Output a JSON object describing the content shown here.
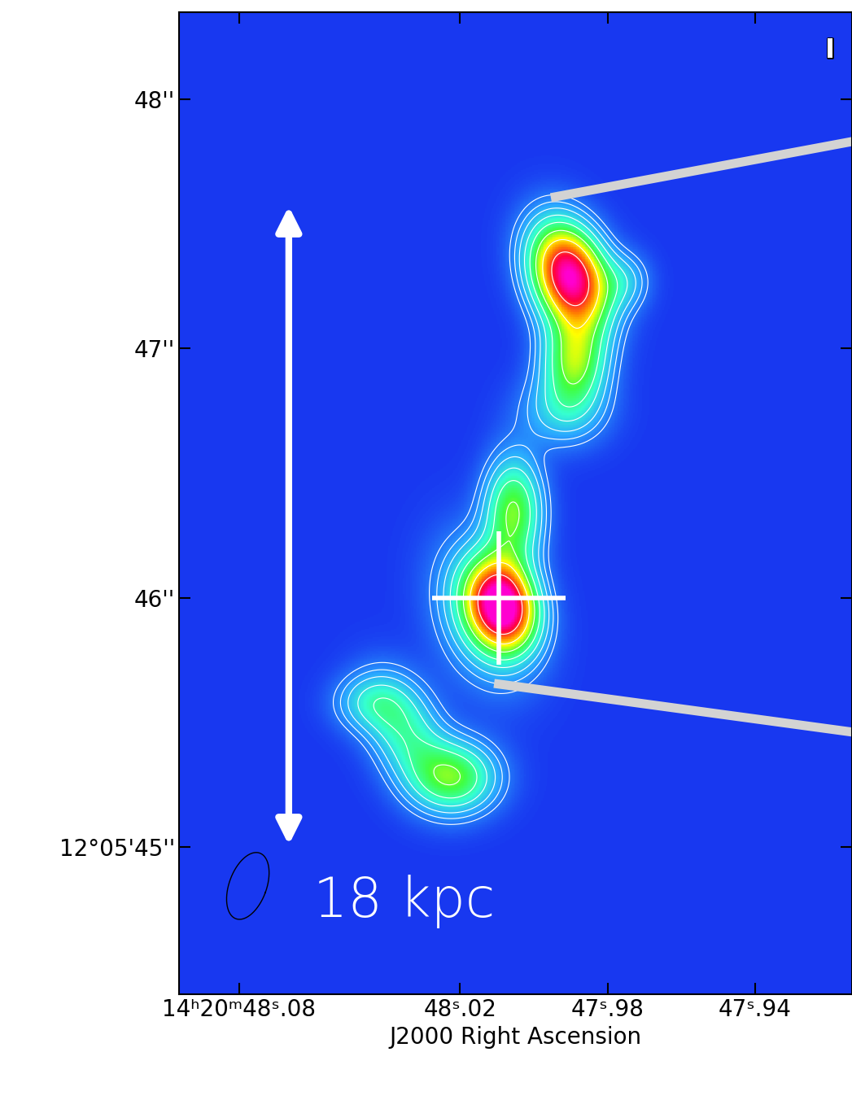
{
  "chart_data": {
    "type": "contour",
    "x_label": "J2000 Right Ascension",
    "xlim": [
      48.0963,
      47.9137
    ],
    "ylim": [
      44.41,
      48.349
    ],
    "xticks": [
      {
        "value": 48.08,
        "label": "14ʰ20ᵐ48ˢ.08"
      },
      {
        "value": 48.02,
        "label": "48ˢ.02"
      },
      {
        "value": 47.98,
        "label": "47ˢ.98"
      },
      {
        "value": 47.94,
        "label": "47ˢ.94"
      }
    ],
    "yticks": [
      {
        "value": 48,
        "label": "48''"
      },
      {
        "value": 47,
        "label": "47''"
      },
      {
        "value": 46,
        "label": "46''"
      },
      {
        "value": 45,
        "label": "12°05'45''"
      }
    ],
    "colormap": {
      "vmin": 0,
      "vmax": 1,
      "colors": [
        "#1838f0",
        "#2aa8ff",
        "#35ffd0",
        "#40ff40",
        "#ffff00",
        "#ff8000",
        "#ff0040",
        "#ff00d0"
      ]
    },
    "contours": {
      "levels": [
        0.08,
        0.12,
        0.17,
        0.24,
        0.33,
        0.45,
        0.6,
        0.8
      ],
      "color": "#ffffff"
    },
    "sources": [
      {
        "x": 47.9903,
        "y": 47.29,
        "peak": 1.0,
        "sigma_major": 0.15,
        "sigma_minor": 0.1,
        "angle": 20
      },
      {
        "x": 47.989,
        "y": 46.95,
        "peak": 0.45,
        "sigma_major": 0.12,
        "sigma_minor": 0.09,
        "angle": 0
      },
      {
        "x": 47.975,
        "y": 47.27,
        "peak": 0.15,
        "sigma_major": 0.08,
        "sigma_minor": 0.07,
        "angle": 0
      },
      {
        "x": 47.992,
        "y": 46.75,
        "peak": 0.2,
        "sigma_major": 0.1,
        "sigma_minor": 0.12,
        "angle": 0
      },
      {
        "x": 48.0085,
        "y": 45.97,
        "peak": 0.9,
        "sigma_major": 0.12,
        "sigma_minor": 0.09,
        "angle": 15
      },
      {
        "x": 48.0055,
        "y": 46.35,
        "peak": 0.45,
        "sigma_major": 0.15,
        "sigma_minor": 0.08,
        "angle": 0
      },
      {
        "x": 48.013,
        "y": 45.95,
        "peak": 0.3,
        "sigma_major": 0.2,
        "sigma_minor": 0.13,
        "angle": 15
      },
      {
        "x": 48.0215,
        "y": 45.28,
        "peak": 0.42,
        "sigma_major": 0.1,
        "sigma_minor": 0.12,
        "angle": 0
      },
      {
        "x": 48.035,
        "y": 45.47,
        "peak": 0.3,
        "sigma_major": 0.1,
        "sigma_minor": 0.16,
        "angle": -65
      },
      {
        "x": 48.045,
        "y": 45.58,
        "peak": 0.18,
        "sigma_major": 0.08,
        "sigma_minor": 0.1,
        "angle": 0
      }
    ],
    "cross": {
      "x": 48.0095,
      "y": 46.0,
      "color": "#ffffff"
    },
    "scale_bar": {
      "label": "18 kpc",
      "x": 48.0665,
      "y_start": 45.0,
      "y_end": 47.58,
      "color": "#ffffff"
    },
    "lines": [
      {
        "x": [
          47.9954,
          47.9137
        ],
        "y": [
          47.605,
          47.83
        ],
        "color": "#d3d3d3"
      },
      {
        "x": [
          48.0108,
          47.9137
        ],
        "y": [
          45.657,
          45.462
        ],
        "color": "#d3d3d3"
      }
    ],
    "beam": {
      "x": 48.0776,
      "y": 44.845,
      "major": 0.28,
      "minor": 0.15,
      "angle": -20,
      "color": "#000000"
    },
    "annotations": [
      {
        "text": "I"
      }
    ]
  }
}
